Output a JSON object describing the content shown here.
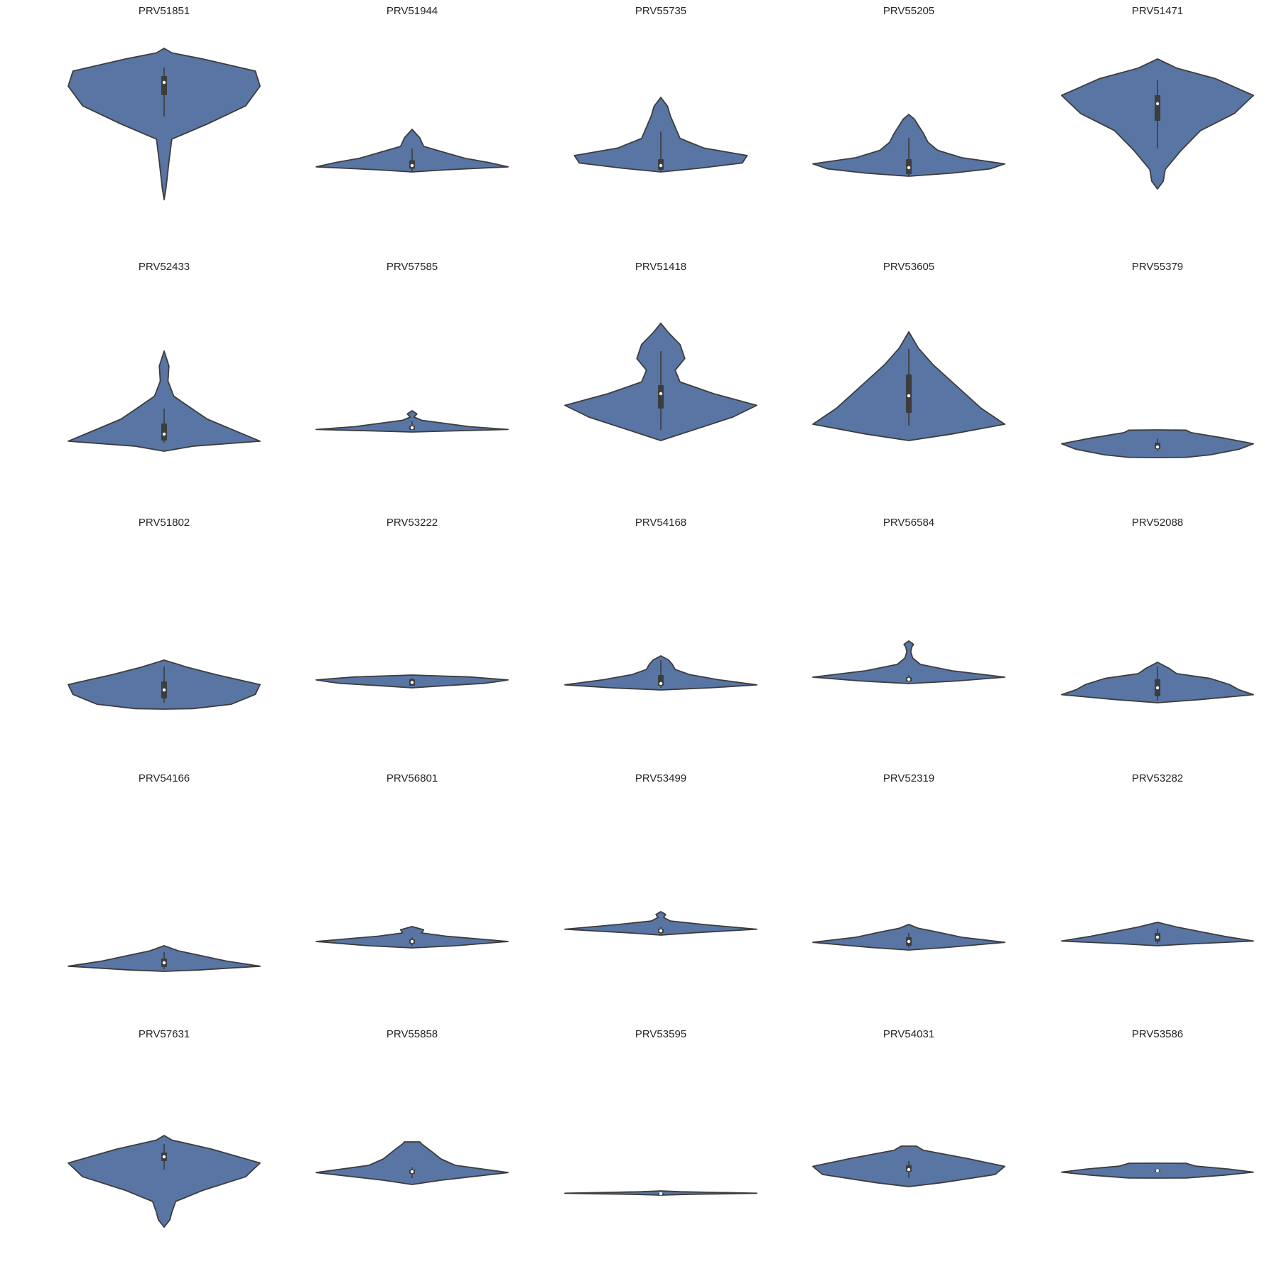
{
  "chart_data": {
    "type": "violin",
    "layout": {
      "rows": 5,
      "cols": 5
    },
    "style": {
      "fill": "#5875a4",
      "edge": "#3d3d3d",
      "median": "#ffffff",
      "background": "#ffffff"
    },
    "panels": [
      {
        "title": "PRV51851",
        "lo": 0.23,
        "hi": 0.94,
        "width_profile": [
          [
            0,
            0
          ],
          [
            0.08,
            0.02
          ],
          [
            0.25,
            0.05
          ],
          [
            0.4,
            0.08
          ],
          [
            0.5,
            0.45
          ],
          [
            0.62,
            0.85
          ],
          [
            0.75,
            1
          ],
          [
            0.85,
            0.95
          ],
          [
            0.93,
            0.4
          ],
          [
            0.97,
            0.08
          ],
          [
            1,
            0
          ]
        ],
        "box": {
          "q1": 0.72,
          "median": 0.78,
          "q3": 0.81,
          "whisker_lo": 0.62,
          "whisker_hi": 0.85
        }
      },
      {
        "title": "PRV51944",
        "lo": 0.36,
        "hi": 0.56,
        "width_profile": [
          [
            0,
            0
          ],
          [
            0.05,
            0.35
          ],
          [
            0.12,
            1
          ],
          [
            0.22,
            0.8
          ],
          [
            0.32,
            0.55
          ],
          [
            0.45,
            0.35
          ],
          [
            0.6,
            0.12
          ],
          [
            0.8,
            0.08
          ],
          [
            1,
            0
          ]
        ],
        "box": {
          "q1": 0.375,
          "median": 0.39,
          "q3": 0.415,
          "whisker_lo": 0.36,
          "whisker_hi": 0.47
        }
      },
      {
        "title": "PRV55735",
        "lo": 0.36,
        "hi": 0.71,
        "width_profile": [
          [
            0,
            0
          ],
          [
            0.05,
            0.4
          ],
          [
            0.12,
            0.85
          ],
          [
            0.22,
            0.9
          ],
          [
            0.32,
            0.45
          ],
          [
            0.45,
            0.2
          ],
          [
            0.6,
            0.15
          ],
          [
            0.75,
            0.1
          ],
          [
            0.88,
            0.07
          ],
          [
            1,
            0
          ]
        ],
        "box": {
          "q1": 0.37,
          "median": 0.39,
          "q3": 0.42,
          "whisker_lo": 0.36,
          "whisker_hi": 0.55
        }
      },
      {
        "title": "PRV55205",
        "lo": 0.34,
        "hi": 0.63,
        "width_profile": [
          [
            0,
            0
          ],
          [
            0.05,
            0.45
          ],
          [
            0.12,
            0.85
          ],
          [
            0.2,
            1
          ],
          [
            0.3,
            0.55
          ],
          [
            0.42,
            0.3
          ],
          [
            0.55,
            0.2
          ],
          [
            0.7,
            0.15
          ],
          [
            0.82,
            0.1
          ],
          [
            0.92,
            0.06
          ],
          [
            1,
            0
          ]
        ],
        "box": {
          "q1": 0.35,
          "median": 0.38,
          "q3": 0.42,
          "whisker_lo": 0.34,
          "whisker_hi": 0.52
        }
      },
      {
        "title": "PRV51471",
        "lo": 0.28,
        "hi": 0.89,
        "width_profile": [
          [
            0,
            0
          ],
          [
            0.06,
            0.06
          ],
          [
            0.15,
            0.08
          ],
          [
            0.3,
            0.25
          ],
          [
            0.45,
            0.45
          ],
          [
            0.58,
            0.8
          ],
          [
            0.72,
            1
          ],
          [
            0.85,
            0.6
          ],
          [
            0.93,
            0.2
          ],
          [
            1,
            0
          ]
        ],
        "box": {
          "q1": 0.6,
          "median": 0.68,
          "q3": 0.72,
          "whisker_lo": 0.47,
          "whisker_hi": 0.79
        }
      },
      {
        "title": "PRV52433",
        "lo": 0.25,
        "hi": 0.72,
        "width_profile": [
          [
            0,
            0
          ],
          [
            0.05,
            0.3
          ],
          [
            0.1,
            1
          ],
          [
            0.2,
            0.75
          ],
          [
            0.32,
            0.45
          ],
          [
            0.45,
            0.25
          ],
          [
            0.55,
            0.1
          ],
          [
            0.7,
            0.04
          ],
          [
            0.85,
            0.05
          ],
          [
            1,
            0
          ]
        ],
        "box": {
          "q1": 0.3,
          "median": 0.33,
          "q3": 0.38,
          "whisker_lo": 0.29,
          "whisker_hi": 0.45
        }
      },
      {
        "title": "PRV57585",
        "lo": 0.34,
        "hi": 0.44,
        "width_profile": [
          [
            0,
            0
          ],
          [
            0.05,
            0.4
          ],
          [
            0.12,
            1
          ],
          [
            0.25,
            0.6
          ],
          [
            0.4,
            0.35
          ],
          [
            0.55,
            0.1
          ],
          [
            0.7,
            0.02
          ],
          [
            0.85,
            0.05
          ],
          [
            1,
            0
          ]
        ],
        "box": {
          "q1": 0.35,
          "median": 0.36,
          "q3": 0.37,
          "whisker_lo": 0.35,
          "whisker_hi": 0.39
        }
      },
      {
        "title": "PRV51418",
        "lo": 0.3,
        "hi": 0.85,
        "width_profile": [
          [
            0,
            0
          ],
          [
            0.08,
            0.3
          ],
          [
            0.2,
            0.75
          ],
          [
            0.3,
            1
          ],
          [
            0.4,
            0.55
          ],
          [
            0.5,
            0.2
          ],
          [
            0.6,
            0.15
          ],
          [
            0.7,
            0.25
          ],
          [
            0.82,
            0.2
          ],
          [
            0.92,
            0.08
          ],
          [
            1,
            0
          ]
        ],
        "box": {
          "q1": 0.45,
          "median": 0.52,
          "q3": 0.56,
          "whisker_lo": 0.35,
          "whisker_hi": 0.72
        }
      },
      {
        "title": "PRV53605",
        "lo": 0.3,
        "hi": 0.81,
        "width_profile": [
          [
            0,
            0
          ],
          [
            0.06,
            0.45
          ],
          [
            0.15,
            1
          ],
          [
            0.3,
            0.75
          ],
          [
            0.5,
            0.5
          ],
          [
            0.7,
            0.25
          ],
          [
            0.85,
            0.1
          ],
          [
            1,
            0
          ]
        ],
        "box": {
          "q1": 0.43,
          "median": 0.51,
          "q3": 0.61,
          "whisker_lo": 0.37,
          "whisker_hi": 0.73
        }
      },
      {
        "title": "PRV55379",
        "lo": 0.22,
        "hi": 0.35,
        "width_profile": [
          [
            0,
            0
          ],
          [
            0.01,
            0.3
          ],
          [
            0.1,
            0.55
          ],
          [
            0.3,
            0.85
          ],
          [
            0.5,
            1
          ],
          [
            0.7,
            0.7
          ],
          [
            0.9,
            0.35
          ],
          [
            0.99,
            0.3
          ],
          [
            1,
            0
          ]
        ],
        "box": {
          "q1": 0.26,
          "median": 0.27,
          "q3": 0.29,
          "whisker_lo": 0.25,
          "whisker_hi": 0.31
        }
      },
      {
        "title": "PRV51802",
        "lo": 0.24,
        "hi": 0.47,
        "width_profile": [
          [
            0,
            0
          ],
          [
            0.01,
            0.3
          ],
          [
            0.1,
            0.7
          ],
          [
            0.3,
            0.95
          ],
          [
            0.5,
            1
          ],
          [
            0.7,
            0.55
          ],
          [
            0.85,
            0.25
          ],
          [
            0.97,
            0.05
          ],
          [
            1,
            0
          ]
        ],
        "box": {
          "q1": 0.29,
          "median": 0.33,
          "q3": 0.37,
          "whisker_lo": 0.27,
          "whisker_hi": 0.44
        }
      },
      {
        "title": "PRV53222",
        "lo": 0.34,
        "hi": 0.4,
        "width_profile": [
          [
            0,
            0
          ],
          [
            0.15,
            0.3
          ],
          [
            0.35,
            0.75
          ],
          [
            0.5,
            0.9
          ],
          [
            0.62,
            1
          ],
          [
            0.85,
            0.6
          ],
          [
            1,
            0
          ]
        ],
        "box": {
          "q1": 0.35,
          "median": 0.365,
          "q3": 0.38,
          "whisker_lo": 0.35,
          "whisker_hi": 0.385
        }
      },
      {
        "title": "PRV54168",
        "lo": 0.33,
        "hi": 0.49,
        "width_profile": [
          [
            0,
            0
          ],
          [
            0.06,
            0.5
          ],
          [
            0.15,
            1
          ],
          [
            0.3,
            0.6
          ],
          [
            0.45,
            0.3
          ],
          [
            0.6,
            0.15
          ],
          [
            0.75,
            0.12
          ],
          [
            0.88,
            0.08
          ],
          [
            1,
            0
          ]
        ],
        "box": {
          "q1": 0.35,
          "median": 0.36,
          "q3": 0.4,
          "whisker_lo": 0.34,
          "whisker_hi": 0.47
        }
      },
      {
        "title": "PRV56584",
        "lo": 0.36,
        "hi": 0.56,
        "width_profile": [
          [
            0,
            0
          ],
          [
            0.06,
            0.5
          ],
          [
            0.15,
            1
          ],
          [
            0.3,
            0.45
          ],
          [
            0.45,
            0.12
          ],
          [
            0.6,
            0.04
          ],
          [
            0.75,
            0.02
          ],
          [
            0.85,
            0.03
          ],
          [
            0.92,
            0.05
          ],
          [
            1,
            0
          ]
        ],
        "box": {
          "q1": 0.37,
          "median": 0.38,
          "q3": 0.39,
          "whisker_lo": 0.37,
          "whisker_hi": 0.4
        }
      },
      {
        "title": "PRV52088",
        "lo": 0.27,
        "hi": 0.46,
        "width_profile": [
          [
            0,
            0
          ],
          [
            0.08,
            0.45
          ],
          [
            0.2,
            1
          ],
          [
            0.32,
            0.85
          ],
          [
            0.45,
            0.75
          ],
          [
            0.6,
            0.55
          ],
          [
            0.72,
            0.2
          ],
          [
            0.85,
            0.12
          ],
          [
            1,
            0
          ]
        ],
        "box": {
          "q1": 0.3,
          "median": 0.34,
          "q3": 0.38,
          "whisker_lo": 0.28,
          "whisker_hi": 0.44
        }
      },
      {
        "title": "PRV54166",
        "lo": 0.21,
        "hi": 0.33,
        "width_profile": [
          [
            0,
            0
          ],
          [
            0.05,
            0.35
          ],
          [
            0.2,
            1
          ],
          [
            0.4,
            0.65
          ],
          [
            0.6,
            0.4
          ],
          [
            0.8,
            0.15
          ],
          [
            1,
            0
          ]
        ],
        "box": {
          "q1": 0.23,
          "median": 0.25,
          "q3": 0.27,
          "whisker_lo": 0.22,
          "whisker_hi": 0.3
        }
      },
      {
        "title": "PRV56801",
        "lo": 0.32,
        "hi": 0.42,
        "width_profile": [
          [
            0,
            0
          ],
          [
            0.1,
            0.45
          ],
          [
            0.3,
            1
          ],
          [
            0.55,
            0.35
          ],
          [
            0.7,
            0.1
          ],
          [
            0.85,
            0.12
          ],
          [
            1,
            0
          ]
        ],
        "box": {
          "q1": 0.34,
          "median": 0.35,
          "q3": 0.36,
          "whisker_lo": 0.33,
          "whisker_hi": 0.37
        }
      },
      {
        "title": "PRV53499",
        "lo": 0.38,
        "hi": 0.49,
        "width_profile": [
          [
            0,
            0
          ],
          [
            0.1,
            0.35
          ],
          [
            0.25,
            1
          ],
          [
            0.45,
            0.45
          ],
          [
            0.6,
            0.1
          ],
          [
            0.75,
            0.03
          ],
          [
            0.88,
            0.05
          ],
          [
            1,
            0
          ]
        ],
        "box": {
          "q1": 0.39,
          "median": 0.4,
          "q3": 0.41,
          "whisker_lo": 0.38,
          "whisker_hi": 0.42
        }
      },
      {
        "title": "PRV52319",
        "lo": 0.31,
        "hi": 0.43,
        "width_profile": [
          [
            0,
            0
          ],
          [
            0.1,
            0.4
          ],
          [
            0.3,
            1
          ],
          [
            0.5,
            0.55
          ],
          [
            0.7,
            0.3
          ],
          [
            0.85,
            0.1
          ],
          [
            1,
            0
          ]
        ],
        "box": {
          "q1": 0.33,
          "median": 0.35,
          "q3": 0.37,
          "whisker_lo": 0.32,
          "whisker_hi": 0.39
        }
      },
      {
        "title": "PRV53282",
        "lo": 0.33,
        "hi": 0.44,
        "width_profile": [
          [
            0,
            0
          ],
          [
            0.08,
            0.35
          ],
          [
            0.2,
            1
          ],
          [
            0.4,
            0.7
          ],
          [
            0.6,
            0.45
          ],
          [
            0.8,
            0.2
          ],
          [
            1,
            0
          ]
        ],
        "box": {
          "q1": 0.35,
          "median": 0.37,
          "q3": 0.39,
          "whisker_lo": 0.34,
          "whisker_hi": 0.41
        }
      },
      {
        "title": "PRV57631",
        "lo": 0.21,
        "hi": 0.64,
        "width_profile": [
          [
            0,
            0
          ],
          [
            0.08,
            0.06
          ],
          [
            0.16,
            0.08
          ],
          [
            0.28,
            0.12
          ],
          [
            0.4,
            0.4
          ],
          [
            0.55,
            0.85
          ],
          [
            0.7,
            1
          ],
          [
            0.85,
            0.5
          ],
          [
            0.95,
            0.08
          ],
          [
            1,
            0
          ]
        ],
        "box": {
          "q1": 0.52,
          "median": 0.54,
          "q3": 0.56,
          "whisker_lo": 0.48,
          "whisker_hi": 0.6
        }
      },
      {
        "title": "PRV55858",
        "lo": 0.41,
        "hi": 0.61,
        "width_profile": [
          [
            0,
            0
          ],
          [
            0.1,
            0.3
          ],
          [
            0.28,
            1
          ],
          [
            0.45,
            0.45
          ],
          [
            0.6,
            0.3
          ],
          [
            0.78,
            0.2
          ],
          [
            0.95,
            0.1
          ],
          [
            1,
            0.08
          ]
        ],
        "box": {
          "q1": 0.46,
          "median": 0.47,
          "q3": 0.48,
          "whisker_lo": 0.44,
          "whisker_hi": 0.49
        }
      },
      {
        "title": "PRV53595",
        "lo": 0.36,
        "hi": 0.38,
        "width_profile": [
          [
            0,
            0
          ],
          [
            0.2,
            0.3
          ],
          [
            0.45,
            1
          ],
          [
            0.65,
            0.55
          ],
          [
            0.8,
            0.2
          ],
          [
            1,
            0
          ]
        ],
        "box": {
          "q1": 0.365,
          "median": 0.367,
          "q3": 0.369,
          "whisker_lo": 0.364,
          "whisker_hi": 0.372
        }
      },
      {
        "title": "PRV54031",
        "lo": 0.4,
        "hi": 0.59,
        "width_profile": [
          [
            0,
            0
          ],
          [
            0.1,
            0.35
          ],
          [
            0.3,
            0.9
          ],
          [
            0.5,
            1
          ],
          [
            0.7,
            0.6
          ],
          [
            0.9,
            0.15
          ],
          [
            1,
            0.08
          ]
        ],
        "box": {
          "q1": 0.47,
          "median": 0.48,
          "q3": 0.5,
          "whisker_lo": 0.44,
          "whisker_hi": 0.52
        }
      },
      {
        "title": "PRV53586",
        "lo": 0.44,
        "hi": 0.51,
        "width_profile": [
          [
            0,
            0
          ],
          [
            0.01,
            0.3
          ],
          [
            0.2,
            0.7
          ],
          [
            0.4,
            1
          ],
          [
            0.6,
            0.75
          ],
          [
            0.8,
            0.4
          ],
          [
            0.99,
            0.3
          ],
          [
            1,
            0
          ]
        ],
        "box": {
          "q1": 0.47,
          "median": 0.475,
          "q3": 0.48,
          "whisker_lo": 0.465,
          "whisker_hi": 0.485
        }
      }
    ]
  }
}
